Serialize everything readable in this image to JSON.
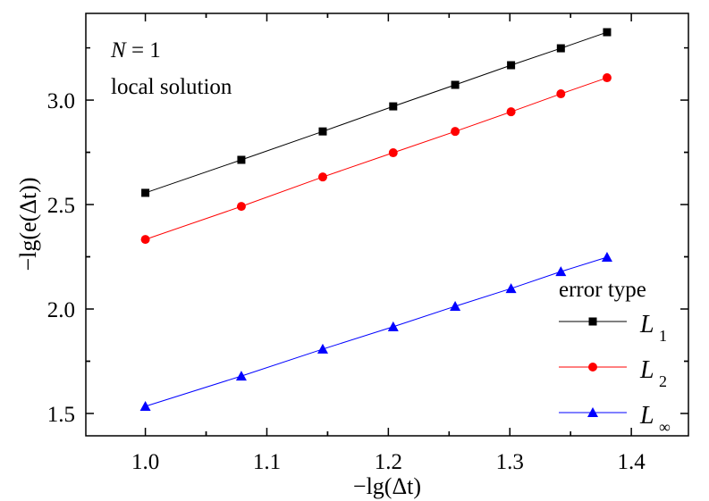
{
  "chart_data": {
    "type": "line",
    "xlabel": "−lg(Δt)",
    "ylabel": "−lg(e(Δt))",
    "xlim": [
      0.951,
      1.447
    ],
    "ylim": [
      1.393,
      3.415
    ],
    "xticks": [
      1.0,
      1.1,
      1.2,
      1.3,
      1.4
    ],
    "xtick_labels": [
      "1.0",
      "1.1",
      "1.2",
      "1.3",
      "1.4"
    ],
    "yticks": [
      1.5,
      2.0,
      2.5,
      3.0
    ],
    "ytick_labels": [
      "1.5",
      "2.0",
      "2.5",
      "3.0"
    ],
    "grid": false,
    "annotations": [
      "N = 1",
      "local solution"
    ],
    "legend": {
      "title": "error type",
      "placement": "bottom-right"
    },
    "x": [
      1.0,
      1.079,
      1.146,
      1.204,
      1.255,
      1.301,
      1.342,
      1.38
    ],
    "series": [
      {
        "name": "L1",
        "label_main": "L",
        "label_sub": "1",
        "color": "#000000",
        "marker": "square",
        "values": [
          2.556,
          2.714,
          2.85,
          2.97,
          3.073,
          3.167,
          3.248,
          3.325
        ]
      },
      {
        "name": "L2",
        "label_main": "L",
        "label_sub": "2",
        "color": "#ff0000",
        "marker": "circle",
        "values": [
          2.333,
          2.491,
          2.632,
          2.748,
          2.85,
          2.944,
          3.03,
          3.107
        ]
      },
      {
        "name": "L∞",
        "label_main": "L",
        "label_sub": "∞",
        "color": "#0000ff",
        "marker": "triangle",
        "values": [
          1.534,
          1.679,
          1.808,
          1.915,
          2.013,
          2.098,
          2.179,
          2.248
        ]
      }
    ]
  }
}
